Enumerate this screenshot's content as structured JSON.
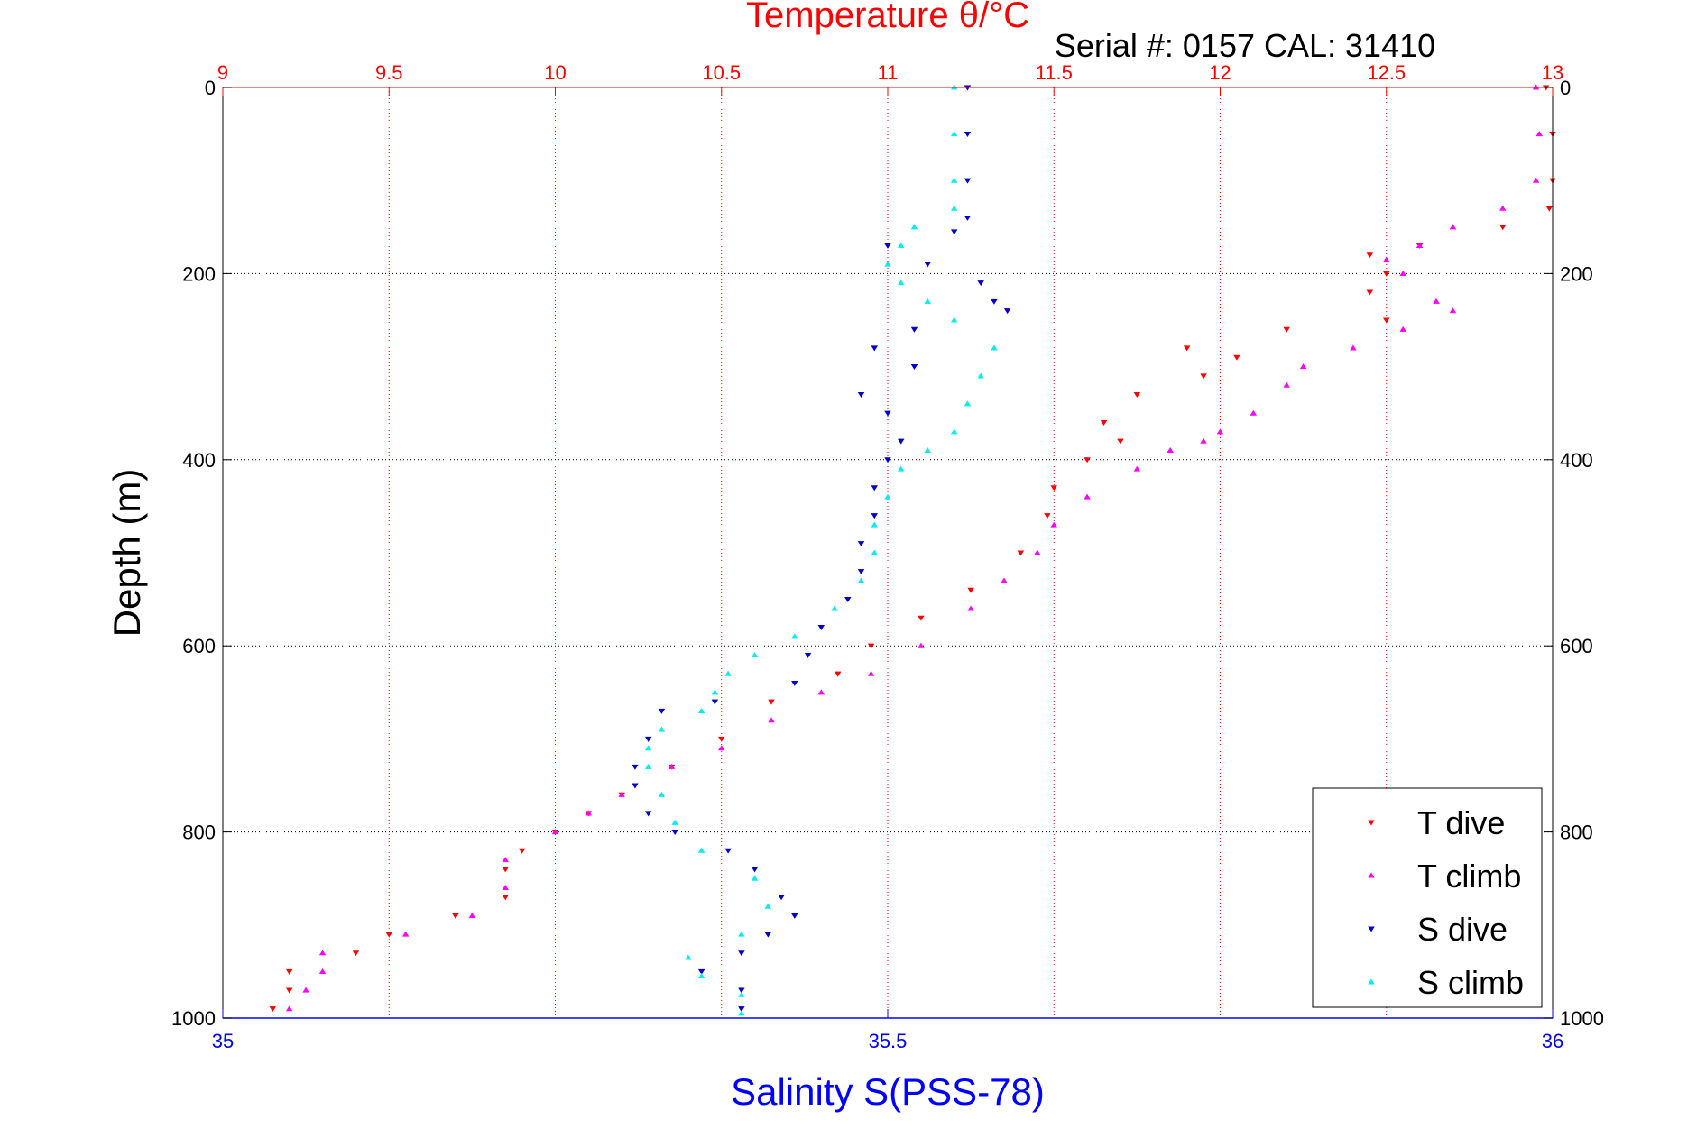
{
  "chart_data": {
    "type": "scatter",
    "title": "Temperature θ/°C",
    "subtitle": "Serial #: 0157  CAL: 31410",
    "xlabel": "Salinity S(PSS-78)",
    "ylabel": "Depth (m)",
    "x_top": {
      "label": "Temperature θ/°C",
      "range": [
        9,
        13
      ],
      "ticks": [
        "9",
        "9.5",
        "10",
        "10.5",
        "11",
        "11.5",
        "12",
        "12.5",
        "13"
      ],
      "color": "#ff0000"
    },
    "x_bottom": {
      "label": "Salinity S(PSS-78)",
      "range": [
        35,
        36
      ],
      "ticks": [
        "35",
        "35.5",
        "36"
      ],
      "color": "#0000ff"
    },
    "y": {
      "range": [
        0,
        1000
      ],
      "reversed": true,
      "ticks": [
        "0",
        "200",
        "400",
        "600",
        "800",
        "1000"
      ]
    },
    "grid": true,
    "legend_position": "bottom-right",
    "series": [
      {
        "name": "T dive",
        "axis": "temperature",
        "color": "#ff0000",
        "marker": "triangle-down",
        "points": [
          [
            12.98,
            0
          ],
          [
            13.0,
            50
          ],
          [
            13.0,
            100
          ],
          [
            12.99,
            130
          ],
          [
            12.85,
            150
          ],
          [
            12.6,
            170
          ],
          [
            12.45,
            180
          ],
          [
            12.5,
            200
          ],
          [
            12.45,
            220
          ],
          [
            12.5,
            250
          ],
          [
            12.2,
            260
          ],
          [
            11.9,
            280
          ],
          [
            12.05,
            290
          ],
          [
            11.95,
            310
          ],
          [
            11.75,
            330
          ],
          [
            11.65,
            360
          ],
          [
            11.7,
            380
          ],
          [
            11.6,
            400
          ],
          [
            11.5,
            430
          ],
          [
            11.48,
            460
          ],
          [
            11.4,
            500
          ],
          [
            11.25,
            540
          ],
          [
            11.1,
            570
          ],
          [
            10.95,
            600
          ],
          [
            10.85,
            630
          ],
          [
            10.65,
            660
          ],
          [
            10.5,
            700
          ],
          [
            10.35,
            730
          ],
          [
            10.2,
            760
          ],
          [
            10.1,
            780
          ],
          [
            10.0,
            800
          ],
          [
            9.9,
            820
          ],
          [
            9.85,
            840
          ],
          [
            9.85,
            870
          ],
          [
            9.7,
            890
          ],
          [
            9.5,
            910
          ],
          [
            9.4,
            930
          ],
          [
            9.2,
            950
          ],
          [
            9.2,
            970
          ],
          [
            9.15,
            990
          ]
        ]
      },
      {
        "name": "T climb",
        "axis": "temperature",
        "color": "#ff00ff",
        "marker": "triangle-up",
        "points": [
          [
            12.95,
            0
          ],
          [
            12.96,
            50
          ],
          [
            12.95,
            100
          ],
          [
            12.85,
            130
          ],
          [
            12.7,
            150
          ],
          [
            12.6,
            170
          ],
          [
            12.5,
            185
          ],
          [
            12.55,
            200
          ],
          [
            12.65,
            230
          ],
          [
            12.7,
            240
          ],
          [
            12.55,
            260
          ],
          [
            12.4,
            280
          ],
          [
            12.25,
            300
          ],
          [
            12.2,
            320
          ],
          [
            12.1,
            350
          ],
          [
            12.0,
            370
          ],
          [
            11.95,
            380
          ],
          [
            11.85,
            390
          ],
          [
            11.75,
            410
          ],
          [
            11.6,
            440
          ],
          [
            11.5,
            470
          ],
          [
            11.45,
            500
          ],
          [
            11.35,
            530
          ],
          [
            11.25,
            560
          ],
          [
            11.1,
            600
          ],
          [
            10.95,
            630
          ],
          [
            10.8,
            650
          ],
          [
            10.65,
            680
          ],
          [
            10.5,
            710
          ],
          [
            10.35,
            730
          ],
          [
            10.2,
            760
          ],
          [
            10.1,
            780
          ],
          [
            10.0,
            800
          ],
          [
            9.85,
            830
          ],
          [
            9.85,
            860
          ],
          [
            9.75,
            890
          ],
          [
            9.55,
            910
          ],
          [
            9.3,
            930
          ],
          [
            9.3,
            950
          ],
          [
            9.25,
            970
          ],
          [
            9.2,
            990
          ]
        ]
      },
      {
        "name": "S dive",
        "axis": "salinity",
        "color": "#0000cc",
        "marker": "triangle-down",
        "points": [
          [
            35.56,
            0
          ],
          [
            35.56,
            50
          ],
          [
            35.56,
            100
          ],
          [
            35.56,
            140
          ],
          [
            35.55,
            155
          ],
          [
            35.5,
            170
          ],
          [
            35.53,
            190
          ],
          [
            35.57,
            210
          ],
          [
            35.58,
            230
          ],
          [
            35.59,
            240
          ],
          [
            35.52,
            260
          ],
          [
            35.49,
            280
          ],
          [
            35.52,
            300
          ],
          [
            35.48,
            330
          ],
          [
            35.5,
            350
          ],
          [
            35.51,
            380
          ],
          [
            35.5,
            400
          ],
          [
            35.49,
            430
          ],
          [
            35.49,
            460
          ],
          [
            35.48,
            490
          ],
          [
            35.48,
            520
          ],
          [
            35.47,
            550
          ],
          [
            35.45,
            580
          ],
          [
            35.44,
            610
          ],
          [
            35.43,
            640
          ],
          [
            35.37,
            660
          ],
          [
            35.33,
            670
          ],
          [
            35.32,
            700
          ],
          [
            35.31,
            730
          ],
          [
            35.31,
            750
          ],
          [
            35.32,
            780
          ],
          [
            35.34,
            800
          ],
          [
            35.38,
            820
          ],
          [
            35.4,
            840
          ],
          [
            35.42,
            870
          ],
          [
            35.43,
            890
          ],
          [
            35.41,
            910
          ],
          [
            35.39,
            930
          ],
          [
            35.36,
            950
          ],
          [
            35.39,
            970
          ],
          [
            35.39,
            990
          ]
        ]
      },
      {
        "name": "S climb",
        "axis": "salinity",
        "color": "#00eeee",
        "marker": "triangle-up",
        "points": [
          [
            35.55,
            0
          ],
          [
            35.55,
            50
          ],
          [
            35.55,
            100
          ],
          [
            35.55,
            130
          ],
          [
            35.52,
            150
          ],
          [
            35.51,
            170
          ],
          [
            35.5,
            190
          ],
          [
            35.51,
            210
          ],
          [
            35.53,
            230
          ],
          [
            35.55,
            250
          ],
          [
            35.58,
            280
          ],
          [
            35.57,
            310
          ],
          [
            35.56,
            340
          ],
          [
            35.55,
            370
          ],
          [
            35.53,
            390
          ],
          [
            35.51,
            410
          ],
          [
            35.5,
            440
          ],
          [
            35.49,
            470
          ],
          [
            35.49,
            500
          ],
          [
            35.48,
            530
          ],
          [
            35.46,
            560
          ],
          [
            35.43,
            590
          ],
          [
            35.4,
            610
          ],
          [
            35.38,
            630
          ],
          [
            35.37,
            650
          ],
          [
            35.36,
            670
          ],
          [
            35.33,
            690
          ],
          [
            35.32,
            710
          ],
          [
            35.32,
            730
          ],
          [
            35.33,
            760
          ],
          [
            35.34,
            790
          ],
          [
            35.36,
            820
          ],
          [
            35.4,
            850
          ],
          [
            35.41,
            880
          ],
          [
            35.39,
            910
          ],
          [
            35.35,
            935
          ],
          [
            35.36,
            955
          ],
          [
            35.39,
            975
          ],
          [
            35.39,
            995
          ]
        ]
      }
    ]
  }
}
